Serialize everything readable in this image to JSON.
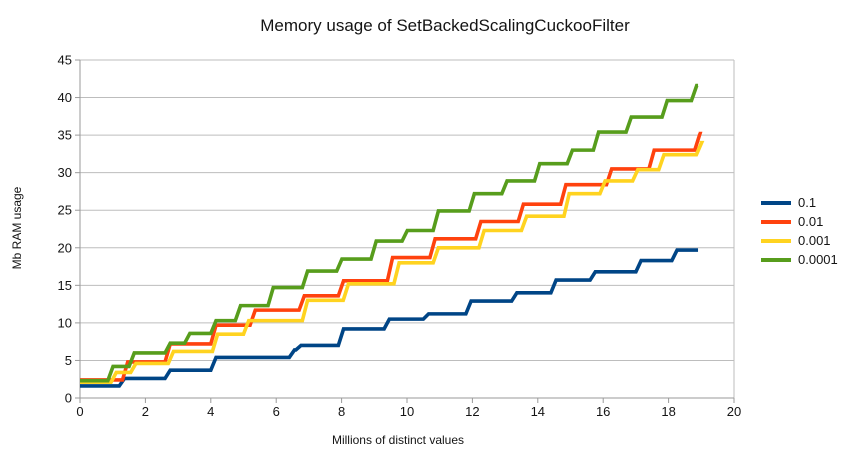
{
  "chart_data": {
    "type": "line",
    "subtype": "step",
    "title": "Memory usage of SetBackedScalingCuckooFilter",
    "xlabel": "Millions of distinct values",
    "ylabel": "Mb RAM usage",
    "xlim": [
      0,
      20
    ],
    "ylim": [
      0,
      45
    ],
    "x_ticks": [
      0,
      2,
      4,
      6,
      8,
      10,
      12,
      14,
      16,
      18,
      20
    ],
    "y_ticks": [
      0,
      5,
      10,
      15,
      20,
      25,
      30,
      35,
      40,
      45
    ],
    "grid": true,
    "legend_position": "right",
    "colors": {
      "gridline": "#bdbdbd",
      "axis": "#9a9a9a",
      "text": "#141414",
      "background": "#ffffff"
    },
    "series": [
      {
        "name": "0.1",
        "color": "#004586",
        "x_end": 18.9,
        "steps": [
          [
            0,
            1.6
          ],
          [
            1.2,
            2.6
          ],
          [
            2.6,
            3.7
          ],
          [
            4.0,
            5.4
          ],
          [
            6.4,
            6.4
          ],
          [
            6.6,
            7.0
          ],
          [
            7.9,
            9.2
          ],
          [
            9.3,
            10.5
          ],
          [
            10.5,
            11.2
          ],
          [
            11.8,
            12.9
          ],
          [
            13.2,
            14.0
          ],
          [
            14.4,
            15.7
          ],
          [
            15.6,
            16.8
          ],
          [
            17.0,
            18.3
          ],
          [
            18.1,
            19.7
          ]
        ]
      },
      {
        "name": "0.01",
        "color": "#FF420E",
        "x_end": 18.92,
        "steps": [
          [
            0,
            2.4
          ],
          [
            1.3,
            4.8
          ],
          [
            2.6,
            7.2
          ],
          [
            4.0,
            9.7
          ],
          [
            5.2,
            11.7
          ],
          [
            6.7,
            13.6
          ],
          [
            7.9,
            15.6
          ],
          [
            9.4,
            18.7
          ],
          [
            10.7,
            21.2
          ],
          [
            12.1,
            23.5
          ],
          [
            13.4,
            25.8
          ],
          [
            14.7,
            28.4
          ],
          [
            16.1,
            30.5
          ],
          [
            17.4,
            33.0
          ],
          [
            18.8,
            35.2
          ]
        ]
      },
      {
        "name": "0.001",
        "color": "#FFD320",
        "x_end": 18.95,
        "steps": [
          [
            0,
            2.1
          ],
          [
            0.95,
            3.4
          ],
          [
            1.55,
            4.6
          ],
          [
            2.7,
            6.2
          ],
          [
            4.05,
            8.5
          ],
          [
            5.0,
            10.3
          ],
          [
            6.8,
            13.0
          ],
          [
            8.05,
            15.2
          ],
          [
            9.6,
            18.0
          ],
          [
            10.8,
            20.0
          ],
          [
            12.2,
            22.3
          ],
          [
            13.5,
            24.2
          ],
          [
            14.8,
            27.2
          ],
          [
            15.9,
            28.9
          ],
          [
            16.9,
            30.4
          ],
          [
            17.7,
            32.4
          ],
          [
            18.85,
            34.0
          ]
        ]
      },
      {
        "name": "0.0001",
        "color": "#579D1C",
        "x_end": 18.9,
        "steps": [
          [
            0,
            2.3
          ],
          [
            0.85,
            4.2
          ],
          [
            1.5,
            6.0
          ],
          [
            2.6,
            7.3
          ],
          [
            3.2,
            8.6
          ],
          [
            4.0,
            10.3
          ],
          [
            4.75,
            12.3
          ],
          [
            5.75,
            14.7
          ],
          [
            6.8,
            16.9
          ],
          [
            7.85,
            18.5
          ],
          [
            8.9,
            20.9
          ],
          [
            9.85,
            22.3
          ],
          [
            10.8,
            24.9
          ],
          [
            11.9,
            27.2
          ],
          [
            12.9,
            28.9
          ],
          [
            13.9,
            31.2
          ],
          [
            14.9,
            33.0
          ],
          [
            15.7,
            35.4
          ],
          [
            16.7,
            37.4
          ],
          [
            17.8,
            39.6
          ],
          [
            18.7,
            41.6
          ]
        ]
      }
    ]
  }
}
